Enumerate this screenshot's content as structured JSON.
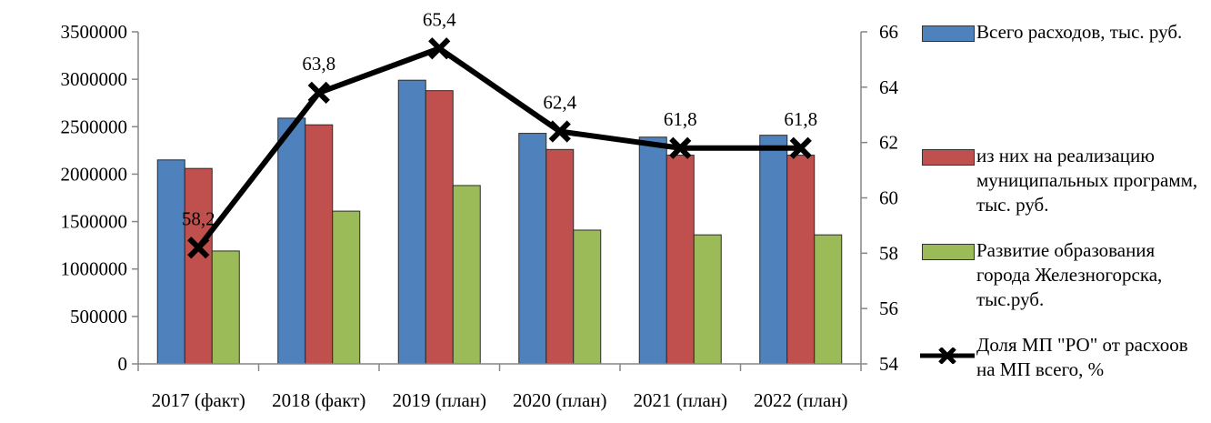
{
  "chart_data": {
    "type": "bar",
    "categories": [
      "2017 (факт)",
      "2018 (факт)",
      "2019 (план)",
      "2020 (план)",
      "2021 (план)",
      "2022 (план)"
    ],
    "series": [
      {
        "name": "Всего расходов, тыс. руб.",
        "type": "bar",
        "axis": "left",
        "color": "#4F81BD",
        "values": [
          2150000,
          2590000,
          2990000,
          2430000,
          2390000,
          2410000
        ]
      },
      {
        "name": "из них на реализацию муниципальных программ, тыс. руб.",
        "type": "bar",
        "axis": "left",
        "color": "#C0504D",
        "values": [
          2060000,
          2520000,
          2880000,
          2260000,
          2200000,
          2200000
        ]
      },
      {
        "name": "Развитие образования города Железногорска, тыс.руб.",
        "type": "bar",
        "axis": "left",
        "color": "#9BBB59",
        "values": [
          1190000,
          1610000,
          1880000,
          1410000,
          1360000,
          1360000
        ]
      },
      {
        "name": "Доля МП \"РО\" от расхоов на МП всего, %",
        "type": "line",
        "axis": "right",
        "color": "#000000",
        "values": [
          58.2,
          63.8,
          65.4,
          62.4,
          61.8,
          61.8
        ],
        "labels": [
          "58,2",
          "63,8",
          "65,4",
          "62,4",
          "61,8",
          "61,8"
        ]
      }
    ],
    "y_left": {
      "min": 0,
      "max": 3500000,
      "step": 500000,
      "ticks": [
        "0",
        "500000",
        "1000000",
        "1500000",
        "2000000",
        "2500000",
        "3000000",
        "3500000"
      ]
    },
    "y_right": {
      "min": 54,
      "max": 66,
      "step": 2,
      "ticks": [
        "54",
        "56",
        "58",
        "60",
        "62",
        "64",
        "66"
      ]
    },
    "grid": false,
    "legend_position": "right"
  }
}
